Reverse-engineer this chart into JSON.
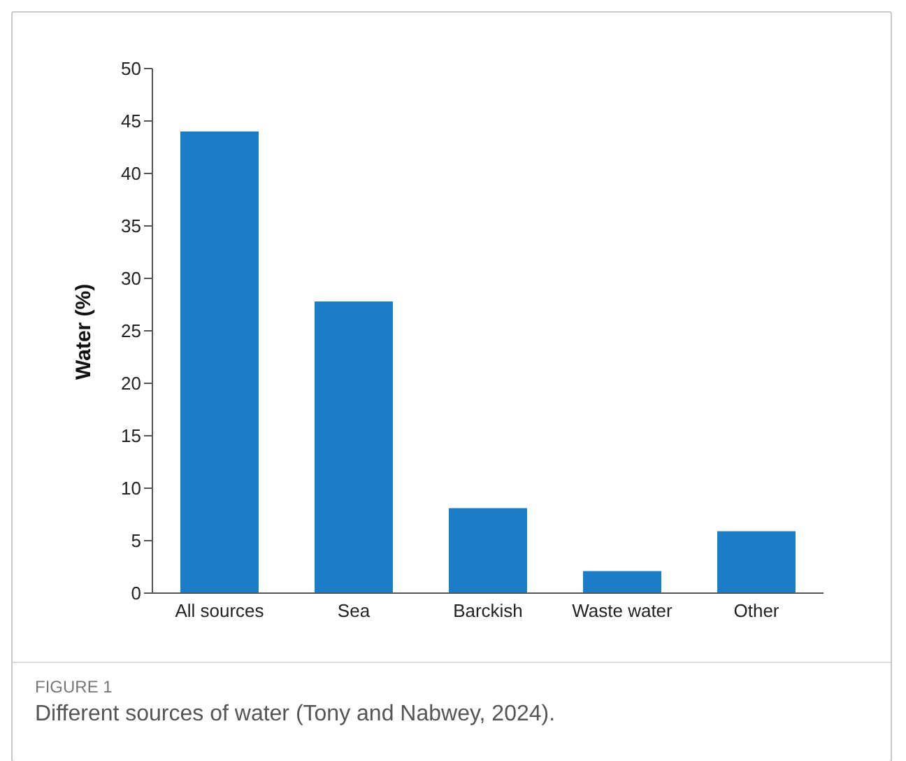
{
  "chart_data": {
    "type": "bar",
    "ylabel": "Water (%)",
    "categories": [
      "All sources",
      "Sea",
      "Barckish",
      "Waste water",
      "Other"
    ],
    "values": [
      44,
      27.8,
      8.1,
      2.1,
      5.9
    ],
    "color": "#1b7dc8",
    "ylim": [
      0,
      50
    ],
    "yticks": [
      0,
      5,
      10,
      15,
      20,
      25,
      30,
      35,
      40,
      45,
      50
    ],
    "grid": false,
    "annotations": [
      "FIGURE 1",
      "Different sources of water (Tony and Nabwey, 2024)."
    ]
  }
}
